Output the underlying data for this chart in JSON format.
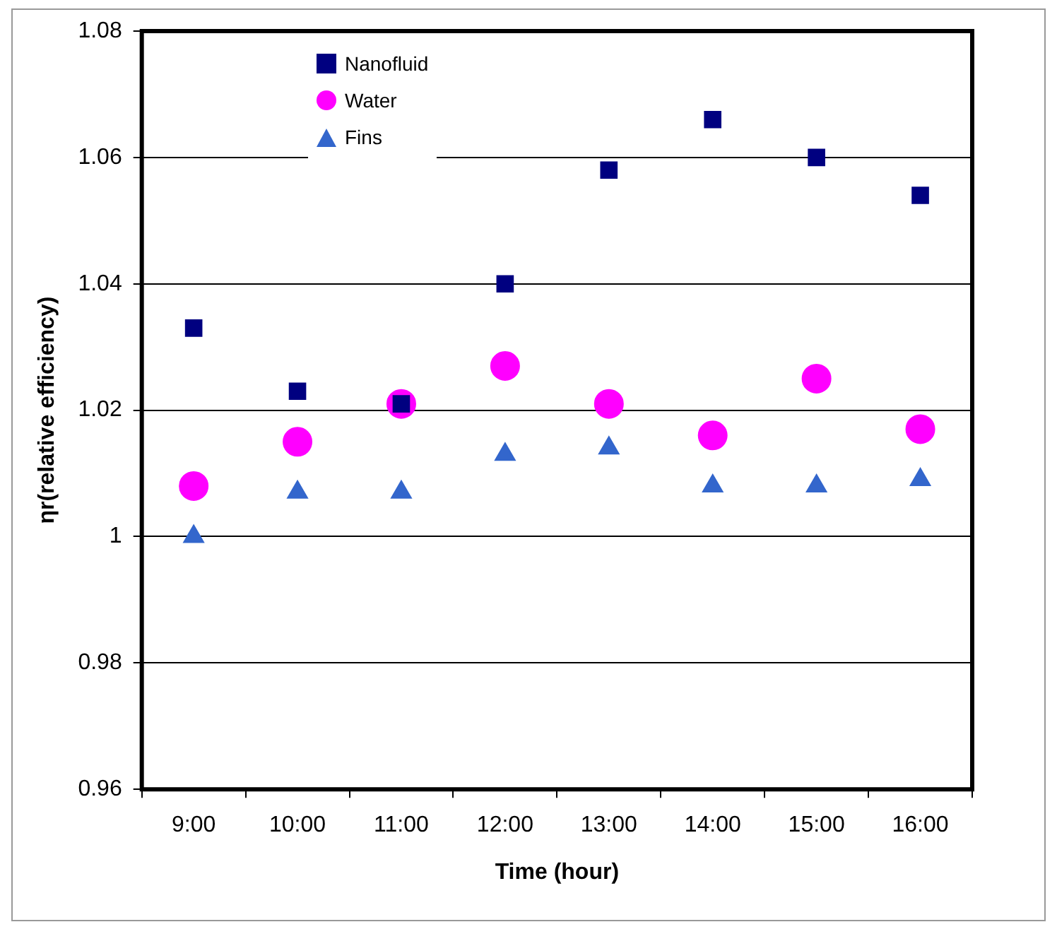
{
  "chart_data": {
    "type": "scatter",
    "xlabel": "Time (hour)",
    "ylabel": "ηr(relative efficiency)",
    "categories": [
      "9:00",
      "10:00",
      "11:00",
      "12:00",
      "13:00",
      "14:00",
      "15:00",
      "16:00"
    ],
    "series": [
      {
        "name": "Nanofluid",
        "color": "#000080",
        "marker": "square",
        "values": [
          1.033,
          1.023,
          1.021,
          1.04,
          1.058,
          1.066,
          1.06,
          1.054
        ]
      },
      {
        "name": "Water",
        "color": "#ff00ff",
        "marker": "circle",
        "values": [
          1.008,
          1.015,
          1.021,
          1.027,
          1.021,
          1.016,
          1.025,
          1.017
        ]
      },
      {
        "name": "Fins",
        "color": "#3366cc",
        "marker": "triangle",
        "values": [
          1.0,
          1.007,
          1.007,
          1.013,
          1.014,
          1.008,
          1.008,
          1.009
        ]
      }
    ],
    "ylim": [
      0.96,
      1.08
    ],
    "yticks": [
      0.96,
      0.98,
      1,
      1.02,
      1.04,
      1.06,
      1.08
    ],
    "grid": "y",
    "legend": "top left"
  }
}
